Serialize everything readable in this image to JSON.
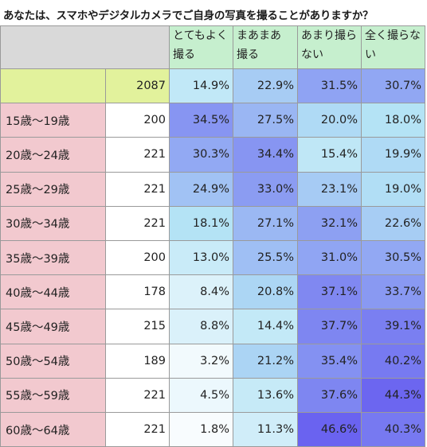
{
  "title": "あなたは、スマホやデジタルカメラでご自身の写真を撮ることがありますか？",
  "chart_data": {
    "type": "table",
    "columns": [
      "とてもよく撮る",
      "まあまあ撮る",
      "あまり撮らない",
      "全く撮らない"
    ],
    "column_header_lines": [
      [
        "とてもよく",
        "撮る"
      ],
      [
        "まあまあ",
        "撮る"
      ],
      [
        "あまり撮ら",
        "ない"
      ],
      [
        "全く撮らな",
        "い"
      ]
    ],
    "total_row": {
      "label": "",
      "n": "2087",
      "values": [
        "14.9%",
        "22.9%",
        "31.5%",
        "30.7%"
      ]
    },
    "rows": [
      {
        "label": "15歳～19歳",
        "n": "200",
        "values": [
          "34.5%",
          "27.5%",
          "20.0%",
          "18.0%"
        ]
      },
      {
        "label": "20歳～24歳",
        "n": "221",
        "values": [
          "30.3%",
          "34.4%",
          "15.4%",
          "19.9%"
        ]
      },
      {
        "label": "25歳～29歳",
        "n": "221",
        "values": [
          "24.9%",
          "33.0%",
          "23.1%",
          "19.0%"
        ]
      },
      {
        "label": "30歳～34歳",
        "n": "221",
        "values": [
          "18.1%",
          "27.1%",
          "32.1%",
          "22.6%"
        ]
      },
      {
        "label": "35歳～39歳",
        "n": "200",
        "values": [
          "13.0%",
          "25.5%",
          "31.0%",
          "30.5%"
        ]
      },
      {
        "label": "40歳～44歳",
        "n": "178",
        "values": [
          "8.4%",
          "20.8%",
          "37.1%",
          "33.7%"
        ]
      },
      {
        "label": "45歳～49歳",
        "n": "215",
        "values": [
          "8.8%",
          "14.4%",
          "37.7%",
          "39.1%"
        ]
      },
      {
        "label": "50歳～54歳",
        "n": "189",
        "values": [
          "3.2%",
          "21.2%",
          "35.4%",
          "40.2%"
        ]
      },
      {
        "label": "55歳～59歳",
        "n": "221",
        "values": [
          "4.5%",
          "13.6%",
          "37.6%",
          "44.3%"
        ]
      },
      {
        "label": "60歳～64歳",
        "n": "221",
        "values": [
          "1.8%",
          "11.3%",
          "46.6%",
          "40.3%"
        ]
      }
    ],
    "colors": {
      "header_blank": "#d9d9d9",
      "header_cols": "#c6efce",
      "total_row": "#e2f29c",
      "age_label": "#f2c9cf",
      "n_cell": "#ffffff",
      "heat_low": "#ffffff",
      "heat_mid": "#b4e3f5",
      "heat_high": "#6a63f0"
    }
  }
}
